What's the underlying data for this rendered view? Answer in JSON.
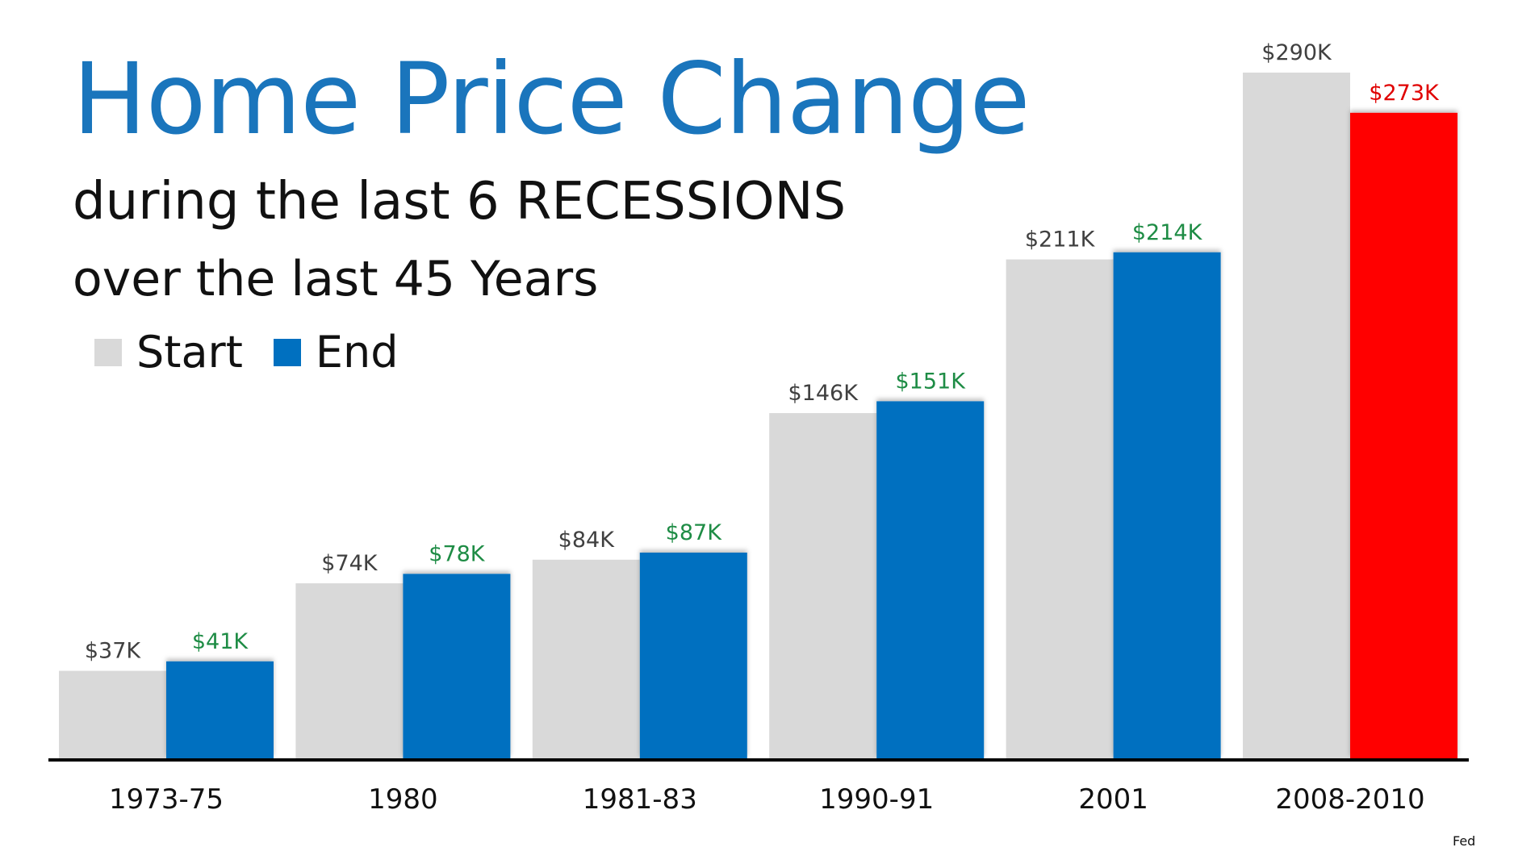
{
  "header": {
    "title": "Home Price Change",
    "subtitle": "during the last 6 RECESSIONS",
    "subtitle2": "over the last 45 Years"
  },
  "legend": [
    {
      "label": "Start",
      "color": "#d9d9d9"
    },
    {
      "label": "End",
      "color": "#0070c0"
    }
  ],
  "source": "Fed",
  "colors": {
    "start": "#d9d9d9",
    "end": "#0070c0",
    "end_decline": "#ff0000",
    "start_label": "#404040",
    "end_label": "#1e8c45",
    "decline_label": "#e00000",
    "axis": "#000000"
  },
  "chart_data": {
    "type": "bar",
    "categories": [
      "1973-75",
      "1980",
      "1981-83",
      "1990-91",
      "2001",
      "2008-2010"
    ],
    "series": [
      {
        "name": "Start",
        "values": [
          37,
          74,
          84,
          146,
          211,
          290
        ],
        "labels": [
          "$37K",
          "$74K",
          "$84K",
          "$146K",
          "$211K",
          "$290K"
        ]
      },
      {
        "name": "End",
        "values": [
          41,
          78,
          87,
          151,
          214,
          273
        ],
        "labels": [
          "$41K",
          "$78K",
          "$87K",
          "$151K",
          "$214K",
          "$273K"
        ]
      }
    ],
    "highlight": {
      "series": "End",
      "category": "2008-2010",
      "color": "#ff0000"
    },
    "title": "Home Price Change",
    "ylim": [
      0,
      290
    ],
    "grid": false,
    "legend_position": "top-left"
  }
}
